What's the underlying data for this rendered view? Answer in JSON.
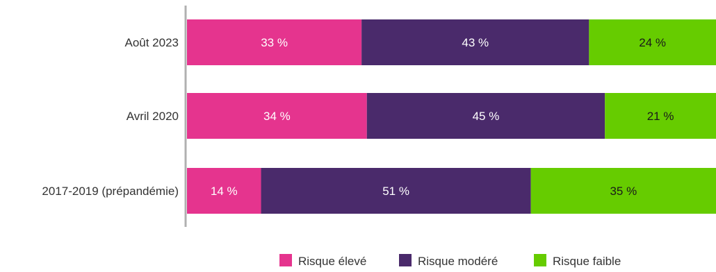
{
  "chart_data": {
    "type": "bar",
    "orientation": "horizontal",
    "stacked": true,
    "categories": [
      "Août 2023",
      "Avril 2020",
      "2017-2019 (prépandémie)"
    ],
    "series": [
      {
        "name": "Risque élevé",
        "color": "#e5348e",
        "label_color": "#ffffff",
        "values": [
          33,
          34,
          14
        ],
        "labels": [
          "33 %",
          "34 %",
          "14 %"
        ]
      },
      {
        "name": "Risque modéré",
        "color": "#4a2a6b",
        "label_color": "#ffffff",
        "values": [
          43,
          45,
          51
        ],
        "labels": [
          "43 %",
          "45 %",
          "51 %"
        ]
      },
      {
        "name": "Risque faible",
        "color": "#66cc00",
        "label_color": "#1a1a1a",
        "values": [
          24,
          21,
          35
        ],
        "labels": [
          "24 %",
          "21 %",
          "35 %"
        ]
      }
    ],
    "xlim": [
      0,
      100
    ],
    "grid": false,
    "legend_position": "bottom"
  }
}
